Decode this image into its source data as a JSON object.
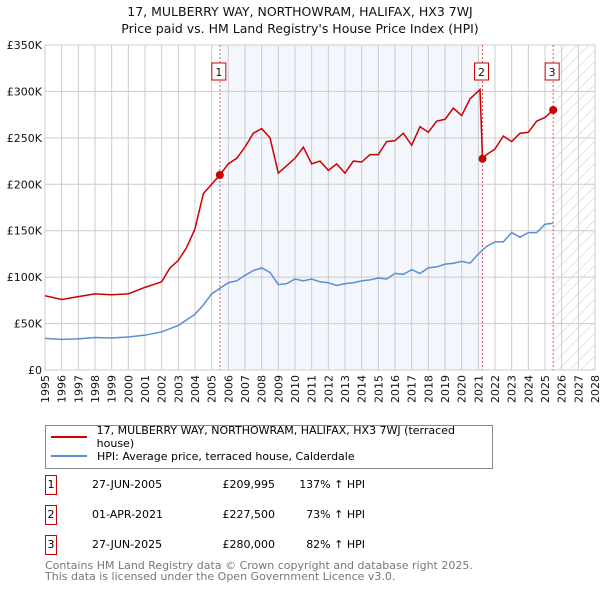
{
  "chart_data": {
    "type": "line",
    "title": "17, MULBERRY WAY, NORTHOWRAM, HALIFAX, HX3 7WJ",
    "subtitle": "Price paid vs. HM Land Registry's House Price Index (HPI)",
    "xlim": [
      1995,
      2028
    ],
    "ylim": [
      0,
      350000
    ],
    "x_ticks": [
      "1995",
      "1996",
      "1997",
      "1998",
      "1999",
      "2000",
      "2001",
      "2002",
      "2003",
      "2004",
      "2005",
      "2006",
      "2007",
      "2008",
      "2009",
      "2010",
      "2011",
      "2012",
      "2013",
      "2014",
      "2015",
      "2016",
      "2017",
      "2018",
      "2019",
      "2020",
      "2021",
      "2022",
      "2023",
      "2024",
      "2025",
      "2026",
      "2027",
      "2028"
    ],
    "y_ticks": [
      {
        "v": 0,
        "l": "£0"
      },
      {
        "v": 50000,
        "l": "£50K"
      },
      {
        "v": 100000,
        "l": "£100K"
      },
      {
        "v": 150000,
        "l": "£150K"
      },
      {
        "v": 200000,
        "l": "£200K"
      },
      {
        "v": 250000,
        "l": "£250K"
      },
      {
        "v": 300000,
        "l": "£300K"
      },
      {
        "v": 350000,
        "l": "£350K"
      }
    ],
    "grid": true,
    "shaded_range": [
      2005.49,
      2021.25
    ],
    "forecast_hatch_from": 2025.49,
    "series": [
      {
        "name": "17, MULBERRY WAY, NORTHOWRAM, HALIFAX, HX3 7WJ (terraced house)",
        "color": "#cc0000",
        "x": [
          1995,
          1996,
          1997,
          1998,
          1999,
          2000,
          2001,
          2002,
          2002.5,
          2003,
          2003.5,
          2004,
          2004.5,
          2005,
          2005.49,
          2006,
          2006.5,
          2007,
          2007.5,
          2008,
          2008.5,
          2009,
          2009.5,
          2010,
          2010.5,
          2011,
          2011.5,
          2012,
          2012.5,
          2013,
          2013.5,
          2014,
          2014.5,
          2015,
          2015.5,
          2016,
          2016.5,
          2017,
          2017.5,
          2018,
          2018.5,
          2019,
          2019.5,
          2020,
          2020.5,
          2021.1,
          2021.25,
          2021.5,
          2022,
          2022.5,
          2023,
          2023.5,
          2024,
          2024.5,
          2025,
          2025.49
        ],
        "y": [
          80000,
          76000,
          79000,
          82000,
          81000,
          82000,
          89000,
          95000,
          110000,
          118000,
          132000,
          152000,
          190000,
          200000,
          209995,
          222000,
          228000,
          240000,
          255000,
          260000,
          250000,
          212000,
          220000,
          228000,
          240000,
          222000,
          225000,
          215000,
          222000,
          212000,
          225000,
          224000,
          232000,
          232000,
          246000,
          247000,
          255000,
          242000,
          262000,
          256000,
          268000,
          270000,
          282000,
          274000,
          292000,
          302000,
          227500,
          232000,
          238000,
          252000,
          246000,
          255000,
          256000,
          268000,
          272000,
          280000
        ]
      },
      {
        "name": "HPI: Average price, terraced house, Calderdale",
        "color": "#5b8fd4",
        "x": [
          1995,
          1996,
          1997,
          1998,
          1999,
          2000,
          2001,
          2002,
          2003,
          2004,
          2004.5,
          2005,
          2005.5,
          2006,
          2006.5,
          2007,
          2007.5,
          2008,
          2008.5,
          2009,
          2009.5,
          2010,
          2010.5,
          2011,
          2011.5,
          2012,
          2012.5,
          2013,
          2013.5,
          2014,
          2014.5,
          2015,
          2015.5,
          2016,
          2016.5,
          2017,
          2017.5,
          2018,
          2018.5,
          2019,
          2019.5,
          2020,
          2020.5,
          2021,
          2021.5,
          2022,
          2022.5,
          2023,
          2023.5,
          2024,
          2024.5,
          2025,
          2025.49
        ],
        "y": [
          34000,
          33000,
          33500,
          35000,
          34500,
          35500,
          37500,
          41000,
          48000,
          60000,
          70000,
          82000,
          88000,
          94000,
          96000,
          102000,
          107000,
          110000,
          105000,
          92000,
          93000,
          98000,
          96000,
          98000,
          95000,
          94000,
          91000,
          93000,
          94000,
          96000,
          97000,
          99000,
          98000,
          104000,
          103000,
          108000,
          104000,
          110000,
          111000,
          114000,
          115000,
          117000,
          115000,
          125000,
          133000,
          138000,
          138000,
          148000,
          143000,
          148000,
          148000,
          157000,
          158000
        ]
      }
    ],
    "sales": [
      {
        "id": "1",
        "x": 2005.49,
        "price": 209995,
        "date": "27-JUN-2005",
        "price_label": "£209,995",
        "hpi": "137% ↑ HPI"
      },
      {
        "id": "2",
        "x": 2021.25,
        "price": 227500,
        "date": "01-APR-2021",
        "price_label": "£227,500",
        "hpi": "73% ↑ HPI"
      },
      {
        "id": "3",
        "x": 2025.49,
        "price": 280000,
        "date": "27-JUN-2025",
        "price_label": "£280,000",
        "hpi": "82% ↑ HPI"
      }
    ]
  },
  "footer": {
    "line1": "Contains HM Land Registry data © Crown copyright and database right 2025.",
    "line2": "This data is licensed under the Open Government Licence v3.0."
  }
}
